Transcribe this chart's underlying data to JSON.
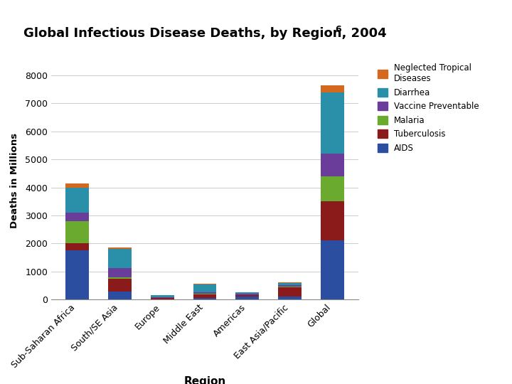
{
  "title": "Global Infectious Disease Deaths, by Region, 2004",
  "title_superscript": "6",
  "xlabel": "Region",
  "ylabel": "Deaths in Millions",
  "categories": [
    "Sub-Saharan Africa",
    "South/SE Asia",
    "Europe",
    "Middle East",
    "Americas",
    "East Asia/Pacific",
    "Global"
  ],
  "diseases": [
    "AIDS",
    "Tuberculosis",
    "Malaria",
    "Vaccine Preventable",
    "Diarrhea",
    "Neglected Tropical Diseases"
  ],
  "colors": [
    "#2b4ea0",
    "#8b1a1a",
    "#6aaa2e",
    "#6a3d9a",
    "#2a8fa8",
    "#d2691e"
  ],
  "data": {
    "AIDS": [
      1750,
      290,
      10,
      60,
      100,
      100,
      2100
    ],
    "Tuberculosis": [
      250,
      460,
      50,
      130,
      60,
      330,
      1400
    ],
    "Malaria": [
      800,
      50,
      5,
      20,
      10,
      20,
      900
    ],
    "Vaccine Preventable": [
      300,
      310,
      20,
      40,
      30,
      60,
      800
    ],
    "Diarrhea": [
      900,
      700,
      80,
      300,
      60,
      90,
      2200
    ],
    "Neglected Tropical Diseases": [
      150,
      50,
      5,
      10,
      10,
      10,
      250
    ]
  },
  "ylim": [
    0,
    8500
  ],
  "yticks": [
    0,
    1000,
    2000,
    3000,
    4000,
    5000,
    6000,
    7000,
    8000
  ],
  "background_color": "#ffffff",
  "legend_labels": [
    "Neglected Tropical Diseases",
    "Diarrhea",
    "Vaccine Preventable",
    "Malaria",
    "Tuberculosis",
    "AIDS"
  ],
  "legend_display": [
    "Neglected Tropical\nDiseases",
    "Diarrhea",
    "Vaccine Preventable",
    "Malaria",
    "Tuberculosis",
    "AIDS"
  ]
}
